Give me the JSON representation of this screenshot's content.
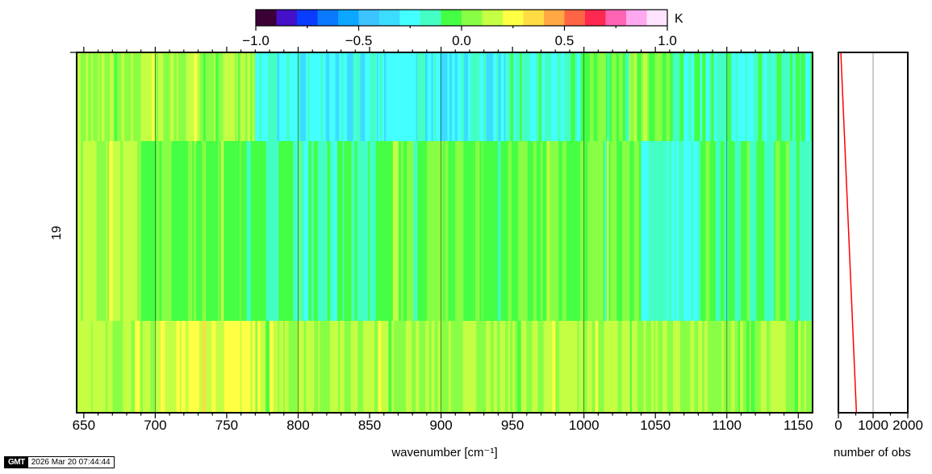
{
  "colorbar": {
    "ticks": [
      "−1.0",
      "−0.5",
      "0.0",
      "0.5",
      "1.0"
    ],
    "unit": "K",
    "colors": [
      "#3b0036",
      "#4410c8",
      "#0a3cff",
      "#0a78ff",
      "#0aa6ff",
      "#3cc4ff",
      "#3cdcff",
      "#44ffff",
      "#44ffc4",
      "#44ff44",
      "#88ff44",
      "#c4ff44",
      "#ffff44",
      "#ffdc44",
      "#ffa844",
      "#ff6444",
      "#ff2850",
      "#ff64b4",
      "#ffa8f0",
      "#ffe4ff"
    ]
  },
  "main_axis": {
    "xlabel": "wavenumber [cm⁻¹]",
    "ylabel": "19"
  },
  "side_axis": {
    "xlabel": "number of obs"
  },
  "footer": {
    "logo": "GMT",
    "timestamp": "2026 Mar 20 07:44:44"
  },
  "chart_data": [
    {
      "type": "heatmap",
      "title": "",
      "xlabel": "wavenumber [cm⁻¹]",
      "ylabel": "19",
      "xlim": [
        645,
        1160
      ],
      "x_ticks": [
        650,
        700,
        750,
        800,
        850,
        900,
        950,
        1000,
        1050,
        1100,
        1150
      ],
      "colorbar_range": [
        -1.0,
        1.0
      ],
      "colorbar_unit": "K",
      "rows": [
        {
          "band": "top",
          "segments": [
            {
              "x0": 645,
              "x1": 690,
              "value": 0.1
            },
            {
              "x0": 690,
              "x1": 770,
              "value": 0.1
            },
            {
              "x0": 770,
              "x1": 855,
              "value": -0.25
            },
            {
              "x0": 855,
              "x1": 945,
              "value": -0.25
            },
            {
              "x0": 945,
              "x1": 1000,
              "value": -0.15
            },
            {
              "x0": 1000,
              "x1": 1060,
              "value": 0.0
            },
            {
              "x0": 1060,
              "x1": 1160,
              "value": -0.15
            }
          ]
        },
        {
          "band": "middle",
          "segments": [
            {
              "x0": 645,
              "x1": 690,
              "value": 0.15
            },
            {
              "x0": 690,
              "x1": 760,
              "value": 0.0
            },
            {
              "x0": 760,
              "x1": 855,
              "value": -0.1
            },
            {
              "x0": 855,
              "x1": 1000,
              "value": 0.0
            },
            {
              "x0": 1000,
              "x1": 1040,
              "value": 0.0
            },
            {
              "x0": 1040,
              "x1": 1075,
              "value": -0.2
            },
            {
              "x0": 1075,
              "x1": 1160,
              "value": -0.1
            }
          ]
        },
        {
          "band": "bottom",
          "segments": [
            {
              "x0": 645,
              "x1": 700,
              "value": 0.1
            },
            {
              "x0": 700,
              "x1": 770,
              "value": 0.2
            },
            {
              "x0": 770,
              "x1": 1100,
              "value": 0.1
            },
            {
              "x0": 1100,
              "x1": 1160,
              "value": 0.05
            }
          ]
        }
      ]
    },
    {
      "type": "line",
      "title": "",
      "xlabel": "number of obs",
      "ylabel": "",
      "xlim": [
        0,
        2000
      ],
      "x_ticks": [
        0,
        1000,
        2000
      ],
      "grid": true,
      "series": [
        {
          "color": "#ff0000",
          "points": [
            {
              "x": 70,
              "y": 1.0
            },
            {
              "x": 520,
              "y": 0.0
            }
          ]
        }
      ]
    }
  ]
}
